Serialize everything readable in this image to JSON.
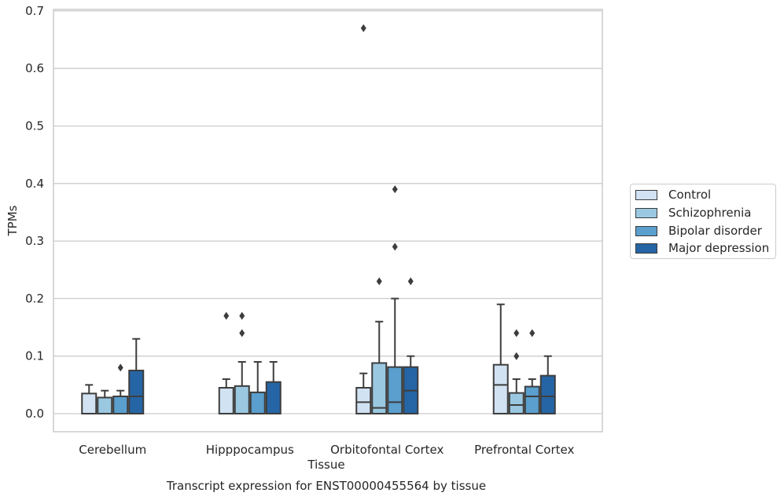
{
  "chart_data": {
    "type": "box",
    "title": "Transcript expression for ENST00000455564 by tissue",
    "xlabel": "Tissue",
    "ylabel": "TPMs",
    "ylim": [
      -0.03,
      0.705
    ],
    "yticks": [
      "0.0",
      "0.1",
      "0.2",
      "0.3",
      "0.4",
      "0.5",
      "0.6",
      "0.7"
    ],
    "grid": "horizontal",
    "legend_position": "right",
    "categories": [
      "Cerebellum",
      "Hipppocampus",
      "Orbitofontal Cortex",
      "Prefrontal Cortex"
    ],
    "series": [
      {
        "name": "Control",
        "color": "#d1e2f2",
        "boxes": [
          {
            "min": 0,
            "q1": 0,
            "median": 0,
            "q3": 0.035,
            "max": 0.05,
            "outliers": []
          },
          {
            "min": 0,
            "q1": 0,
            "median": 0,
            "q3": 0.045,
            "max": 0.06,
            "outliers": [
              0.17
            ]
          },
          {
            "min": 0,
            "q1": 0,
            "median": 0.02,
            "q3": 0.045,
            "max": 0.07,
            "outliers": [
              0.67
            ]
          },
          {
            "min": 0,
            "q1": 0,
            "median": 0.05,
            "q3": 0.085,
            "max": 0.19,
            "outliers": []
          }
        ]
      },
      {
        "name": "Schizophrenia",
        "color": "#9ac8e0",
        "boxes": [
          {
            "min": 0,
            "q1": 0,
            "median": 0,
            "q3": 0.028,
            "max": 0.04,
            "outliers": []
          },
          {
            "min": 0,
            "q1": 0,
            "median": 0,
            "q3": 0.048,
            "max": 0.09,
            "outliers": [
              0.14,
              0.17
            ]
          },
          {
            "min": 0,
            "q1": 0,
            "median": 0.01,
            "q3": 0.088,
            "max": 0.16,
            "outliers": [
              0.23
            ]
          },
          {
            "min": 0,
            "q1": 0,
            "median": 0.015,
            "q3": 0.036,
            "max": 0.06,
            "outliers": [
              0.1,
              0.14
            ]
          }
        ]
      },
      {
        "name": "Bipolar disorder",
        "color": "#5a9fcd",
        "boxes": [
          {
            "min": 0,
            "q1": 0,
            "median": 0,
            "q3": 0.03,
            "max": 0.04,
            "outliers": [
              0.08
            ]
          },
          {
            "min": 0,
            "q1": 0,
            "median": 0,
            "q3": 0.037,
            "max": 0.09,
            "outliers": []
          },
          {
            "min": 0,
            "q1": 0,
            "median": 0.02,
            "q3": 0.081,
            "max": 0.2,
            "outliers": [
              0.29,
              0.39
            ]
          },
          {
            "min": 0,
            "q1": 0,
            "median": 0.03,
            "q3": 0.047,
            "max": 0.06,
            "outliers": [
              0.14
            ]
          }
        ]
      },
      {
        "name": "Major depression",
        "color": "#2565a5",
        "boxes": [
          {
            "min": 0,
            "q1": 0,
            "median": 0.03,
            "q3": 0.075,
            "max": 0.13,
            "outliers": []
          },
          {
            "min": 0,
            "q1": 0,
            "median": 0,
            "q3": 0.055,
            "max": 0.09,
            "outliers": []
          },
          {
            "min": 0,
            "q1": 0,
            "median": 0.04,
            "q3": 0.081,
            "max": 0.1,
            "outliers": [
              0.23
            ]
          },
          {
            "min": 0,
            "q1": 0,
            "median": 0.03,
            "q3": 0.066,
            "max": 0.1,
            "outliers": []
          }
        ]
      }
    ]
  }
}
